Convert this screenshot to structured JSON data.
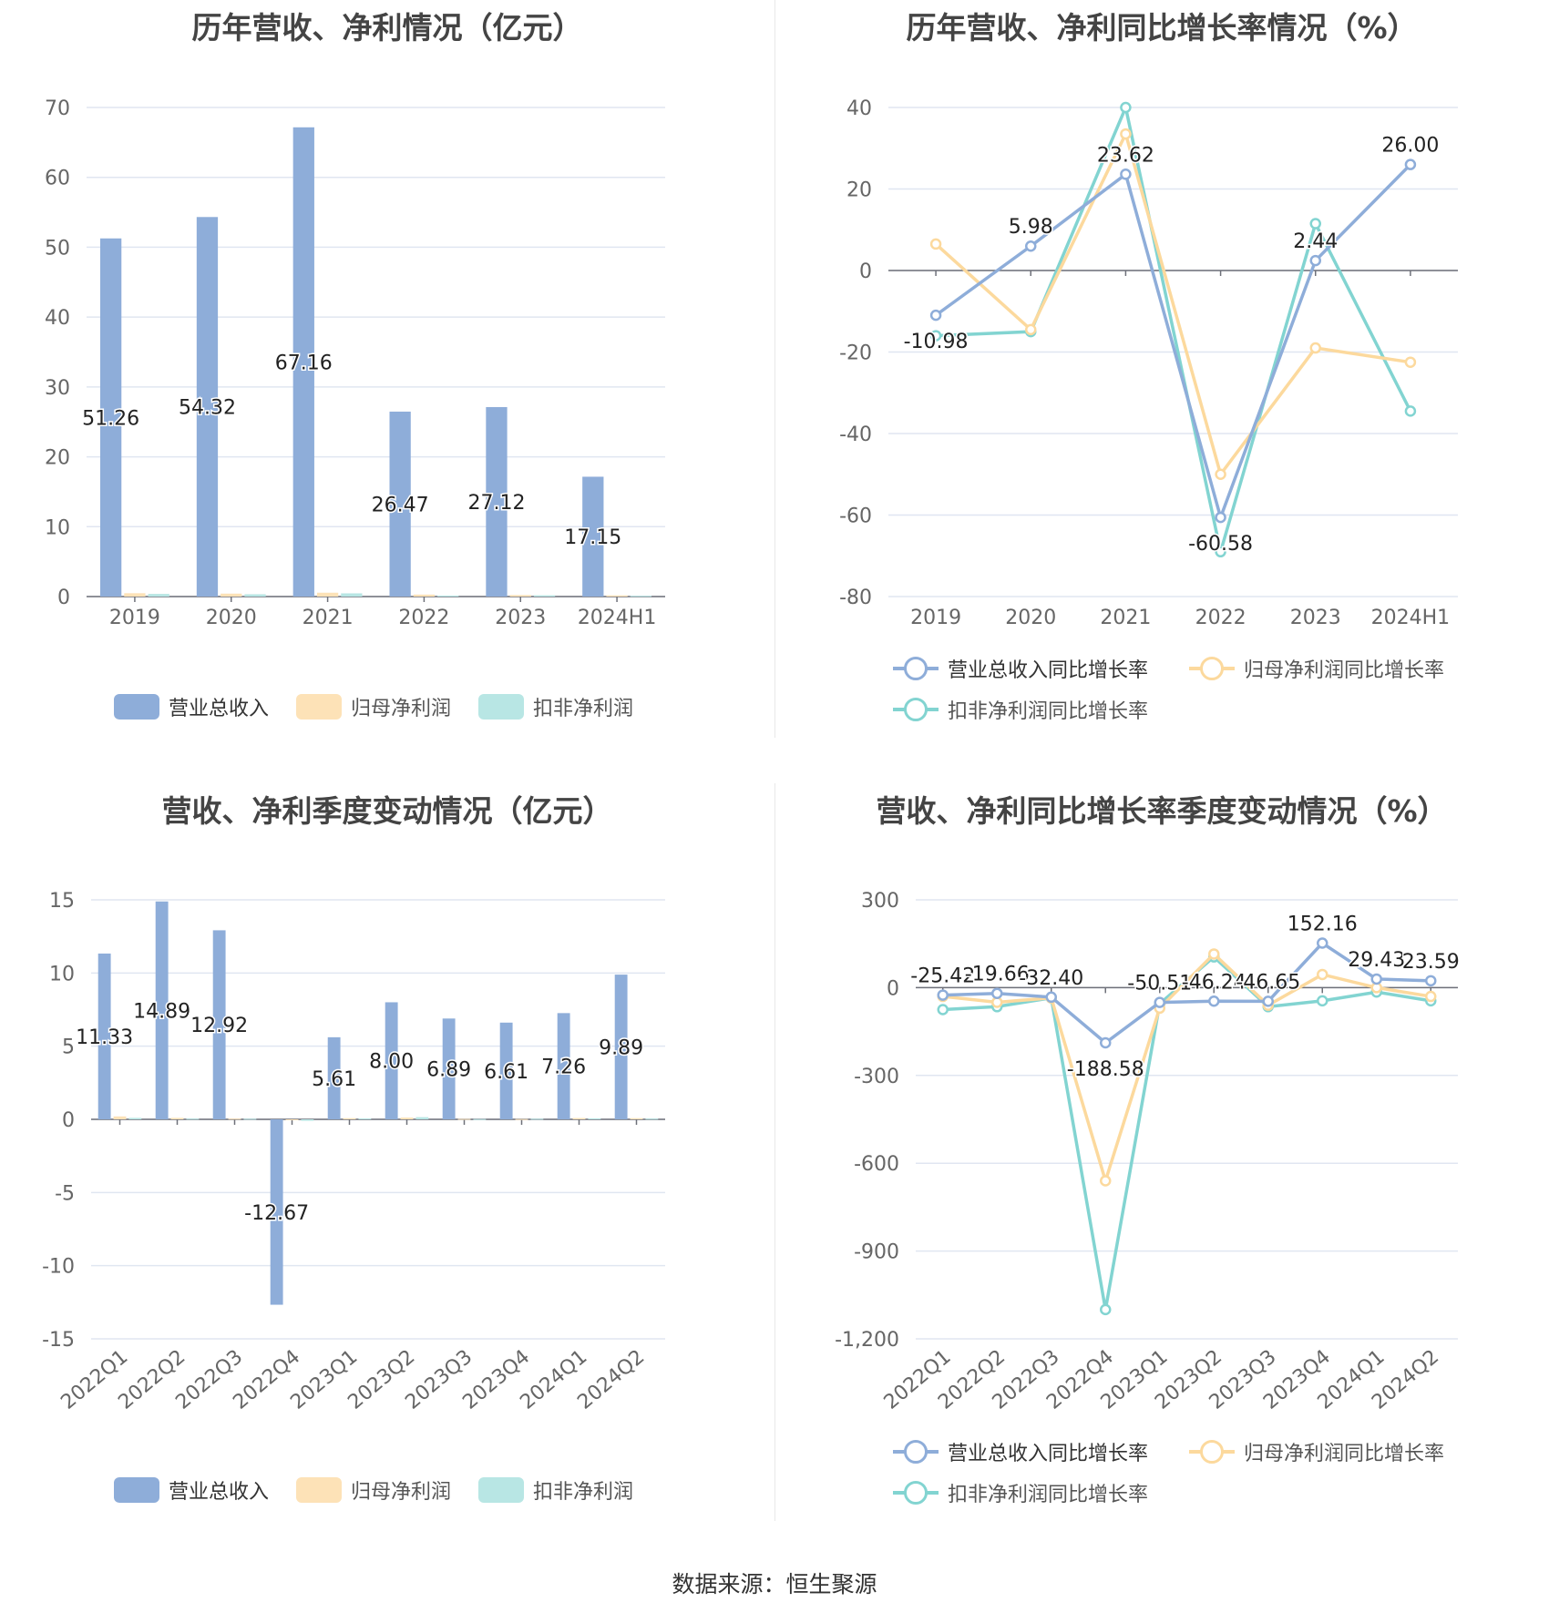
{
  "charts": [
    {
      "title": "历年营收、净利情况（亿元）",
      "chart_data": {
        "type": "bar",
        "categories": [
          "2019",
          "2020",
          "2021",
          "2022",
          "2023",
          "2024H1"
        ],
        "series": [
          {
            "name": "营业总收入",
            "values": [
              51.26,
              54.32,
              67.16,
              26.47,
              27.12,
              17.15
            ],
            "color": "#8eadd9"
          },
          {
            "name": "归母净利润",
            "values": [
              0.48,
              0.42,
              0.55,
              0.28,
              0.22,
              0.17
            ],
            "color": "#fde2b7"
          },
          {
            "name": "扣非净利润",
            "values": [
              0.38,
              0.33,
              0.46,
              0.14,
              0.18,
              0.11
            ],
            "color": "#b8e6e4"
          }
        ],
        "data_labels": [
          "51.26",
          "54.32",
          "67.16",
          "26.47",
          "27.12",
          "17.15"
        ],
        "ylim": [
          0,
          70
        ],
        "yticks": [
          "0",
          "10",
          "20",
          "30",
          "40",
          "50",
          "60",
          "70"
        ],
        "grid": true,
        "legend": "bottom"
      }
    },
    {
      "title": "历年营收、净利同比增长率情况（%）",
      "chart_data": {
        "type": "line",
        "categories": [
          "2019",
          "2020",
          "2021",
          "2022",
          "2023",
          "2024H1"
        ],
        "series": [
          {
            "name": "营业总收入同比增长率",
            "values": [
              -10.98,
              5.98,
              23.62,
              -60.58,
              2.44,
              26.0
            ],
            "color": "#8eadd9"
          },
          {
            "name": "归母净利润同比增长率",
            "values": [
              6.5,
              -14.5,
              33.5,
              -50.0,
              -19.0,
              -22.5
            ],
            "color": "#fcd99d"
          },
          {
            "name": "扣非净利润同比增长率",
            "values": [
              -16.0,
              -15.0,
              40.0,
              -69.0,
              11.5,
              -34.5
            ],
            "color": "#82d4d1"
          }
        ],
        "data_labels": [
          "-10.98",
          "5.98",
          "23.62",
          "-60.58",
          "2.44",
          "26.00"
        ],
        "ylim": [
          -80,
          40
        ],
        "yticks": [
          "-80",
          "-60",
          "-40",
          "-20",
          "0",
          "20",
          "40"
        ],
        "grid": true,
        "legend": "bottom"
      }
    },
    {
      "title": "营收、净利季度变动情况（亿元）",
      "chart_data": {
        "type": "bar",
        "categories": [
          "2022Q1",
          "2022Q2",
          "2022Q3",
          "2022Q4",
          "2023Q1",
          "2023Q2",
          "2023Q3",
          "2023Q4",
          "2024Q1",
          "2024Q2"
        ],
        "series": [
          {
            "name": "营业总收入",
            "values": [
              11.33,
              14.89,
              12.92,
              -12.67,
              5.61,
              8.0,
              6.89,
              6.61,
              7.26,
              9.89
            ],
            "color": "#8eadd9"
          },
          {
            "name": "归母净利润",
            "values": [
              0.2,
              0.1,
              0.05,
              -0.05,
              0.08,
              0.12,
              0.03,
              0.02,
              0.09,
              0.08
            ],
            "color": "#fde2b7"
          },
          {
            "name": "扣非净利润",
            "values": [
              0.1,
              0.05,
              0.04,
              -0.1,
              0.06,
              0.15,
              0.02,
              0.04,
              0.07,
              0.05
            ],
            "color": "#b8e6e4"
          }
        ],
        "data_labels": [
          "11.33",
          "14.89",
          "12.92",
          "-12.67",
          "5.61",
          "8.00",
          "6.89",
          "6.61",
          "7.26",
          "9.89"
        ],
        "ylim": [
          -15,
          15
        ],
        "yticks": [
          "-15",
          "-10",
          "-5",
          "0",
          "5",
          "10",
          "15"
        ],
        "grid": true,
        "legend": "bottom"
      }
    },
    {
      "title": "营收、净利同比增长率季度变动情况（%）",
      "chart_data": {
        "type": "line",
        "categories": [
          "2022Q1",
          "2022Q2",
          "2022Q3",
          "2022Q4",
          "2023Q1",
          "2023Q2",
          "2023Q3",
          "2023Q4",
          "2024Q1",
          "2024Q2"
        ],
        "series": [
          {
            "name": "营业总收入同比增长率",
            "values": [
              -25.42,
              -19.66,
              -32.4,
              -188.58,
              -50.51,
              -46.24,
              -46.65,
              152.16,
              29.43,
              23.59
            ],
            "color": "#8eadd9"
          },
          {
            "name": "归母净利润同比增长率",
            "values": [
              -30.0,
              -50.0,
              -35.0,
              -660.0,
              -70.0,
              115.0,
              -60.0,
              45.0,
              0.0,
              -30.0
            ],
            "color": "#fcd99d"
          },
          {
            "name": "扣非净利润同比增长率",
            "values": [
              -75.0,
              -65.0,
              -35.0,
              -1100.0,
              -55.0,
              105.0,
              -65.0,
              -45.0,
              -15.0,
              -45.0
            ],
            "color": "#82d4d1"
          }
        ],
        "data_labels": [
          "-25.42",
          "-19.66",
          "-32.40",
          "-188.58",
          "-50.51",
          "-46.24",
          "-46.65",
          "152.16",
          "29.43",
          "23.59"
        ],
        "ylim": [
          -1200,
          300
        ],
        "yticks": [
          "-1,200",
          "-900",
          "-600",
          "-300",
          "0",
          "300"
        ],
        "grid": true,
        "legend": "bottom"
      }
    }
  ],
  "source": "数据来源：恒生聚源"
}
